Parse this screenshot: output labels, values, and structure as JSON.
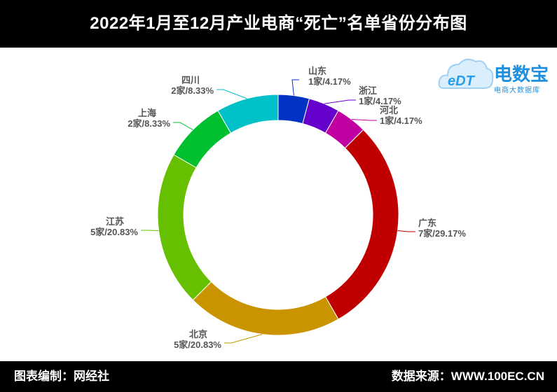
{
  "header": {
    "title": "2022年1月至12月产业电商“死亡”名单省份分布图"
  },
  "footer": {
    "left": "图表编制：网经社",
    "right": "数据来源：WWW.100EC.CN"
  },
  "logo": {
    "brand": "电数宝",
    "sub": "电商大数据库",
    "mark": "eDT"
  },
  "chart_data": {
    "type": "pie",
    "donut": true,
    "title": "2022年1月至12月产业电商“死亡”名单省份分布图",
    "unit": "家",
    "slices": [
      {
        "label": "山东",
        "value": 1,
        "percent": "4.17%",
        "color": "#0033c4"
      },
      {
        "label": "浙江",
        "value": 1,
        "percent": "4.17%",
        "color": "#6600cc"
      },
      {
        "label": "河北",
        "value": 1,
        "percent": "4.17%",
        "color": "#c000a0"
      },
      {
        "label": "广东",
        "value": 7,
        "percent": "29.17%",
        "color": "#c00000"
      },
      {
        "label": "北京",
        "value": 5,
        "percent": "20.83%",
        "color": "#c99400"
      },
      {
        "label": "江苏",
        "value": 5,
        "percent": "20.83%",
        "color": "#66c000"
      },
      {
        "label": "上海",
        "value": 2,
        "percent": "8.33%",
        "color": "#00c030"
      },
      {
        "label": "四川",
        "value": 2,
        "percent": "8.33%",
        "color": "#00c0c8"
      }
    ]
  }
}
